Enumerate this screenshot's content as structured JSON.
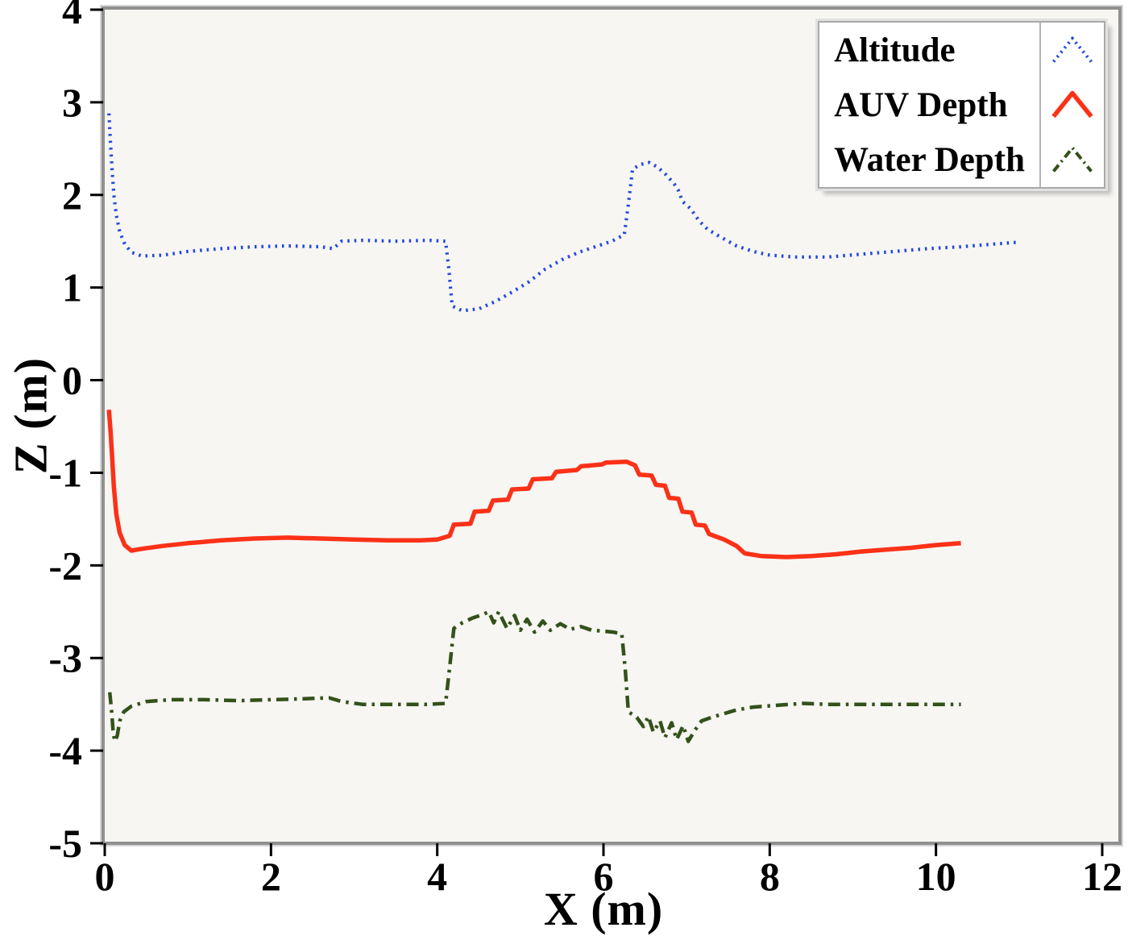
{
  "chart_data": {
    "type": "line",
    "title": "",
    "xlabel": "X (m)",
    "ylabel": "Z (m)",
    "xlim": [
      0,
      12
    ],
    "ylim": [
      -5,
      4
    ],
    "xticks": [
      0,
      2,
      4,
      6,
      8,
      10,
      12
    ],
    "yticks": [
      4,
      3,
      2,
      1,
      0,
      -1,
      -2,
      -3,
      -4,
      -5
    ],
    "grid": false,
    "plot_background": "#f7f6f3",
    "frame_color": "#909090",
    "legend_position": "top-right",
    "series": [
      {
        "name": "Altitude",
        "color": "#2346dd",
        "style": "dotted",
        "points": [
          [
            0.05,
            2.88
          ],
          [
            0.07,
            2.55
          ],
          [
            0.09,
            2.25
          ],
          [
            0.11,
            2.0
          ],
          [
            0.14,
            1.78
          ],
          [
            0.18,
            1.6
          ],
          [
            0.24,
            1.47
          ],
          [
            0.32,
            1.38
          ],
          [
            0.45,
            1.34
          ],
          [
            0.7,
            1.35
          ],
          [
            1.0,
            1.39
          ],
          [
            1.4,
            1.42
          ],
          [
            1.8,
            1.44
          ],
          [
            2.2,
            1.45
          ],
          [
            2.6,
            1.44
          ],
          [
            2.75,
            1.42
          ],
          [
            2.85,
            1.5
          ],
          [
            3.1,
            1.51
          ],
          [
            3.5,
            1.5
          ],
          [
            3.9,
            1.51
          ],
          [
            4.1,
            1.5
          ],
          [
            4.14,
            1.2
          ],
          [
            4.18,
            0.8
          ],
          [
            4.3,
            0.75
          ],
          [
            4.5,
            0.77
          ],
          [
            4.7,
            0.85
          ],
          [
            4.9,
            0.95
          ],
          [
            5.1,
            1.06
          ],
          [
            5.3,
            1.2
          ],
          [
            5.5,
            1.3
          ],
          [
            5.7,
            1.38
          ],
          [
            5.9,
            1.44
          ],
          [
            6.1,
            1.5
          ],
          [
            6.25,
            1.57
          ],
          [
            6.3,
            1.9
          ],
          [
            6.35,
            2.28
          ],
          [
            6.45,
            2.33
          ],
          [
            6.55,
            2.35
          ],
          [
            6.65,
            2.3
          ],
          [
            6.75,
            2.22
          ],
          [
            6.85,
            2.12
          ],
          [
            6.9,
            2.05
          ],
          [
            6.95,
            1.93
          ],
          [
            7.05,
            1.85
          ],
          [
            7.15,
            1.72
          ],
          [
            7.25,
            1.63
          ],
          [
            7.4,
            1.55
          ],
          [
            7.6,
            1.45
          ],
          [
            7.8,
            1.39
          ],
          [
            8.0,
            1.35
          ],
          [
            8.3,
            1.33
          ],
          [
            8.7,
            1.33
          ],
          [
            9.1,
            1.36
          ],
          [
            9.5,
            1.39
          ],
          [
            9.9,
            1.42
          ],
          [
            10.3,
            1.44
          ],
          [
            10.7,
            1.47
          ],
          [
            11.0,
            1.49
          ]
        ]
      },
      {
        "name": "AUV Depth",
        "color": "#fb3118",
        "style": "solid",
        "points": [
          [
            0.05,
            -0.32
          ],
          [
            0.07,
            -0.55
          ],
          [
            0.09,
            -0.85
          ],
          [
            0.11,
            -1.15
          ],
          [
            0.14,
            -1.45
          ],
          [
            0.18,
            -1.65
          ],
          [
            0.24,
            -1.78
          ],
          [
            0.32,
            -1.84
          ],
          [
            0.45,
            -1.82
          ],
          [
            0.7,
            -1.79
          ],
          [
            1.0,
            -1.76
          ],
          [
            1.4,
            -1.73
          ],
          [
            1.8,
            -1.71
          ],
          [
            2.2,
            -1.7
          ],
          [
            2.6,
            -1.71
          ],
          [
            3.0,
            -1.72
          ],
          [
            3.4,
            -1.73
          ],
          [
            3.8,
            -1.73
          ],
          [
            4.0,
            -1.72
          ],
          [
            4.15,
            -1.68
          ],
          [
            4.2,
            -1.56
          ],
          [
            4.4,
            -1.55
          ],
          [
            4.45,
            -1.42
          ],
          [
            4.62,
            -1.41
          ],
          [
            4.67,
            -1.3
          ],
          [
            4.85,
            -1.29
          ],
          [
            4.9,
            -1.18
          ],
          [
            5.1,
            -1.17
          ],
          [
            5.15,
            -1.07
          ],
          [
            5.38,
            -1.06
          ],
          [
            5.43,
            -0.99
          ],
          [
            5.68,
            -0.97
          ],
          [
            5.73,
            -0.93
          ],
          [
            5.98,
            -0.91
          ],
          [
            6.03,
            -0.89
          ],
          [
            6.28,
            -0.88
          ],
          [
            6.38,
            -0.92
          ],
          [
            6.43,
            -1.02
          ],
          [
            6.58,
            -1.03
          ],
          [
            6.63,
            -1.13
          ],
          [
            6.74,
            -1.14
          ],
          [
            6.79,
            -1.27
          ],
          [
            6.9,
            -1.28
          ],
          [
            6.95,
            -1.42
          ],
          [
            7.06,
            -1.43
          ],
          [
            7.11,
            -1.56
          ],
          [
            7.22,
            -1.57
          ],
          [
            7.27,
            -1.66
          ],
          [
            7.45,
            -1.72
          ],
          [
            7.6,
            -1.79
          ],
          [
            7.7,
            -1.87
          ],
          [
            7.9,
            -1.9
          ],
          [
            8.2,
            -1.91
          ],
          [
            8.5,
            -1.9
          ],
          [
            8.8,
            -1.88
          ],
          [
            9.1,
            -1.85
          ],
          [
            9.4,
            -1.83
          ],
          [
            9.7,
            -1.81
          ],
          [
            10.0,
            -1.78
          ],
          [
            10.3,
            -1.76
          ]
        ]
      },
      {
        "name": "Water Depth",
        "color": "#33511a",
        "style": "dashdot",
        "points": [
          [
            0.06,
            -3.37
          ],
          [
            0.08,
            -3.55
          ],
          [
            0.1,
            -3.78
          ],
          [
            0.12,
            -3.9
          ],
          [
            0.15,
            -3.84
          ],
          [
            0.18,
            -3.68
          ],
          [
            0.23,
            -3.58
          ],
          [
            0.32,
            -3.52
          ],
          [
            0.5,
            -3.47
          ],
          [
            0.8,
            -3.45
          ],
          [
            1.2,
            -3.45
          ],
          [
            1.6,
            -3.46
          ],
          [
            2.0,
            -3.45
          ],
          [
            2.4,
            -3.44
          ],
          [
            2.7,
            -3.43
          ],
          [
            2.85,
            -3.47
          ],
          [
            3.1,
            -3.5
          ],
          [
            3.5,
            -3.5
          ],
          [
            3.9,
            -3.5
          ],
          [
            4.1,
            -3.49
          ],
          [
            4.15,
            -3.1
          ],
          [
            4.2,
            -2.68
          ],
          [
            4.3,
            -2.62
          ],
          [
            4.42,
            -2.57
          ],
          [
            4.55,
            -2.53
          ],
          [
            4.62,
            -2.5
          ],
          [
            4.68,
            -2.62
          ],
          [
            4.74,
            -2.5
          ],
          [
            4.84,
            -2.68
          ],
          [
            4.93,
            -2.54
          ],
          [
            5.0,
            -2.7
          ],
          [
            5.08,
            -2.58
          ],
          [
            5.17,
            -2.72
          ],
          [
            5.27,
            -2.6
          ],
          [
            5.36,
            -2.7
          ],
          [
            5.48,
            -2.63
          ],
          [
            5.6,
            -2.69
          ],
          [
            5.73,
            -2.66
          ],
          [
            5.86,
            -2.7
          ],
          [
            6.0,
            -2.71
          ],
          [
            6.12,
            -2.72
          ],
          [
            6.22,
            -2.74
          ],
          [
            6.26,
            -3.1
          ],
          [
            6.3,
            -3.58
          ],
          [
            6.4,
            -3.64
          ],
          [
            6.48,
            -3.74
          ],
          [
            6.54,
            -3.63
          ],
          [
            6.6,
            -3.8
          ],
          [
            6.68,
            -3.68
          ],
          [
            6.74,
            -3.86
          ],
          [
            6.82,
            -3.7
          ],
          [
            6.88,
            -3.88
          ],
          [
            6.96,
            -3.73
          ],
          [
            7.02,
            -3.9
          ],
          [
            7.1,
            -3.78
          ],
          [
            7.18,
            -3.68
          ],
          [
            7.3,
            -3.64
          ],
          [
            7.45,
            -3.6
          ],
          [
            7.6,
            -3.56
          ],
          [
            7.8,
            -3.53
          ],
          [
            8.1,
            -3.51
          ],
          [
            8.4,
            -3.49
          ],
          [
            8.7,
            -3.5
          ],
          [
            9.0,
            -3.5
          ],
          [
            9.3,
            -3.5
          ],
          [
            9.6,
            -3.5
          ],
          [
            9.9,
            -3.5
          ],
          [
            10.15,
            -3.5
          ],
          [
            10.3,
            -3.5
          ]
        ]
      }
    ]
  }
}
